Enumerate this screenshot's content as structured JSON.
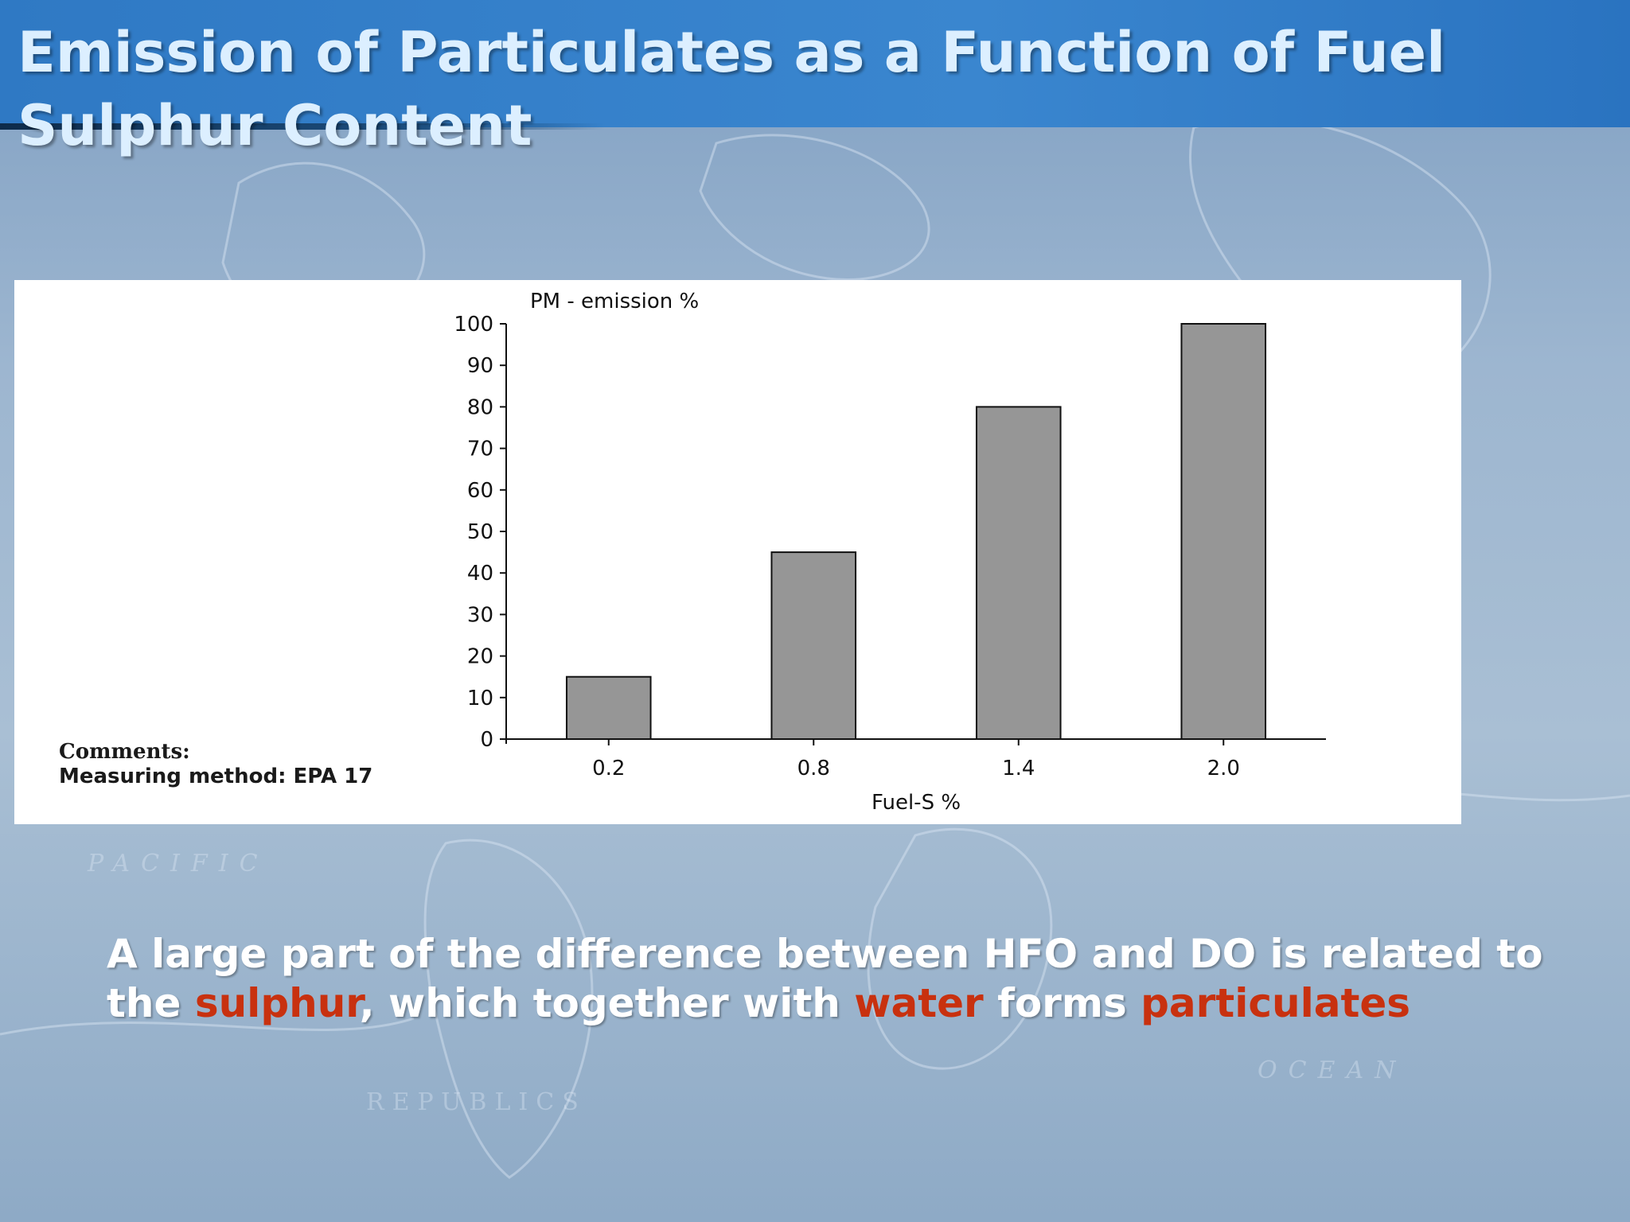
{
  "slide": {
    "title": "Emission of Particulates as a Function of Fuel Sulphur Content",
    "comments_label": "Comments:",
    "comments_method": "Measuring method: EPA 17",
    "caption": {
      "part1": "A large part of the difference between HFO and DO is related to the ",
      "sulphur": "sulphur",
      "part2": ", which together with ",
      "water": "water",
      "part3": " forms ",
      "particulates": "particulates"
    }
  },
  "colors": {
    "bar_fill": "#969696",
    "highlight": "#c8310f",
    "title": "#dcefff",
    "header": "#2f79c4"
  },
  "chart_data": {
    "type": "bar",
    "title": "",
    "xlabel": "Fuel-S %",
    "ylabel": "PM - emission %",
    "categories": [
      "0.2",
      "0.8",
      "1.4",
      "2.0"
    ],
    "values": [
      15,
      45,
      80,
      100
    ],
    "ylim": [
      0,
      100
    ],
    "yticks": [
      0,
      10,
      20,
      30,
      40,
      50,
      60,
      70,
      80,
      90,
      100
    ],
    "grid": false,
    "legend": "none"
  }
}
